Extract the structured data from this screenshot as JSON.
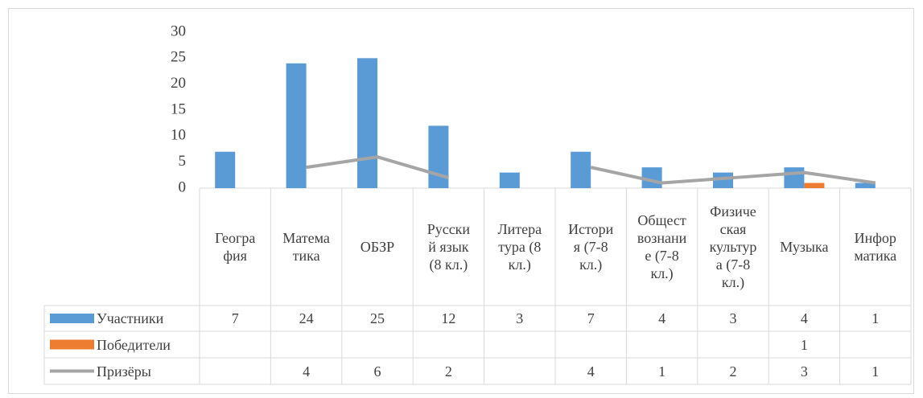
{
  "chart_data": {
    "type": "bar",
    "categories": [
      "Геогра\nфия",
      "Матема\nтика",
      "ОБЗР",
      "Русски\nй язык\n(8 кл.)",
      "Литера\nтура (8\nкл.)",
      "Истори\nя (7-8\nкл.)",
      "Общест\nвознани\nе (7-8\nкл.)",
      "Физиче\nская\nкультур\nа (7-8\nкл.)",
      "Музыка",
      "Инфор\nматика"
    ],
    "series": [
      {
        "name": "Участники",
        "type": "bar",
        "color": "#5b9bd5",
        "values": [
          7,
          24,
          25,
          12,
          3,
          7,
          4,
          3,
          4,
          1
        ]
      },
      {
        "name": "Победители",
        "type": "bar",
        "color": "#ed7d31",
        "values": [
          null,
          null,
          null,
          null,
          null,
          null,
          null,
          null,
          1,
          null
        ]
      },
      {
        "name": "Призёры",
        "type": "line",
        "color": "#a5a5a5",
        "values": [
          null,
          4,
          6,
          2,
          null,
          4,
          1,
          2,
          3,
          1
        ]
      }
    ],
    "ylim": [
      0,
      30
    ],
    "yticks": [
      0,
      5,
      10,
      15,
      20,
      25,
      30
    ],
    "grid": false,
    "data_table": true
  }
}
